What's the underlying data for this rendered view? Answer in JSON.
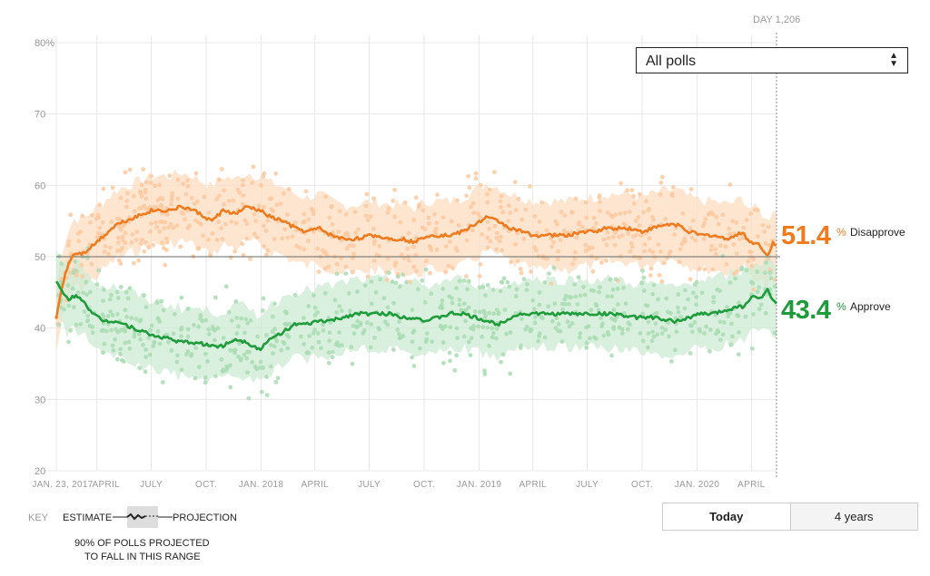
{
  "dropdown": {
    "selected": "All polls"
  },
  "day_label": "DAY 1,206",
  "colors": {
    "disapprove": "#f07b1f",
    "approve": "#1e9b3a",
    "grid": "#e8e8e8"
  },
  "results": {
    "disapprove": {
      "value": "51.4",
      "pct": "%",
      "label": "Disapprove"
    },
    "approve": {
      "value": "43.4",
      "pct": "%",
      "label": "Approve"
    }
  },
  "buttons": {
    "today": "Today",
    "years": "4 years"
  },
  "key": {
    "title": "KEY",
    "estimate": "ESTIMATE",
    "projection": "PROJECTION",
    "note_line1": "90% OF POLLS PROJECTED",
    "note_line2": "TO FALL IN THIS RANGE"
  },
  "chart_data": {
    "type": "line",
    "ylim": [
      20,
      80
    ],
    "y_ticks": [
      "80%",
      "70",
      "60",
      "50",
      "40",
      "30",
      "20"
    ],
    "x_ticks": [
      "JAN. 23, 2017",
      "APRIL",
      "JULY",
      "OCT.",
      "JAN. 2018",
      "APRIL",
      "JULY",
      "OCT.",
      "JAN. 2019",
      "APRIL",
      "JULY",
      "OCT.",
      "JAN. 2020",
      "APRIL"
    ],
    "x_range_days": [
      0,
      1206
    ],
    "x_tick_days": [
      0,
      68,
      159,
      251,
      343,
      433,
      524,
      616,
      708,
      798,
      889,
      981,
      1073,
      1164
    ],
    "reference_line": 50,
    "series": [
      {
        "name": "Disapprove",
        "color": "#f07b1f",
        "x": [
          0,
          10,
          20,
          30,
          45,
          60,
          80,
          100,
          130,
          160,
          190,
          210,
          230,
          260,
          280,
          300,
          320,
          340,
          360,
          380,
          400,
          420,
          440,
          460,
          480,
          500,
          530,
          560,
          580,
          600,
          620,
          640,
          660,
          680,
          700,
          720,
          740,
          760,
          780,
          800,
          820,
          840,
          860,
          880,
          900,
          920,
          940,
          960,
          980,
          1000,
          1020,
          1040,
          1060,
          1080,
          1100,
          1120,
          1140,
          1150,
          1160,
          1170,
          1180,
          1190,
          1200,
          1206
        ],
        "values": [
          41.5,
          46,
          49,
          50.5,
          50.5,
          51.5,
          53,
          54.5,
          55.5,
          56.5,
          56.5,
          57,
          56.5,
          55,
          56.5,
          56,
          57,
          56.5,
          55.5,
          55,
          54,
          53.5,
          54,
          53,
          52.5,
          52.5,
          53,
          52.5,
          52.5,
          52,
          53,
          53,
          53,
          53.5,
          54.5,
          55.5,
          55,
          54,
          53.5,
          53,
          53,
          53,
          53,
          53.5,
          53.5,
          54,
          54,
          54,
          53.5,
          54,
          54.5,
          54.5,
          53.5,
          53,
          53,
          52.5,
          53,
          53.5,
          52,
          52,
          51.5,
          50,
          52,
          51.4
        ]
      },
      {
        "name": "Approve",
        "color": "#1e9b3a",
        "x": [
          0,
          10,
          20,
          30,
          45,
          60,
          80,
          100,
          130,
          160,
          190,
          210,
          230,
          260,
          280,
          300,
          320,
          340,
          360,
          380,
          400,
          420,
          440,
          460,
          480,
          500,
          530,
          560,
          580,
          600,
          620,
          640,
          660,
          680,
          700,
          720,
          740,
          760,
          780,
          800,
          820,
          840,
          860,
          880,
          900,
          920,
          940,
          960,
          980,
          1000,
          1020,
          1040,
          1060,
          1080,
          1100,
          1120,
          1140,
          1150,
          1160,
          1170,
          1180,
          1190,
          1200,
          1206
        ],
        "values": [
          46.5,
          45,
          44,
          44.5,
          44,
          42,
          41,
          41,
          40,
          39,
          38.5,
          38,
          38,
          37.5,
          37.5,
          38.5,
          38,
          37,
          38.5,
          39.5,
          40.5,
          40.5,
          41,
          41,
          41.5,
          42,
          42,
          42,
          41.5,
          41.5,
          41,
          41.5,
          42,
          42,
          41.5,
          41,
          40.5,
          41.5,
          42,
          42,
          42,
          42,
          42,
          42,
          42,
          42,
          42,
          41.5,
          41.5,
          41.5,
          41,
          41,
          41.5,
          42,
          42,
          42.5,
          43,
          43,
          44,
          44.5,
          44,
          45.5,
          44,
          43.4
        ]
      }
    ]
  }
}
